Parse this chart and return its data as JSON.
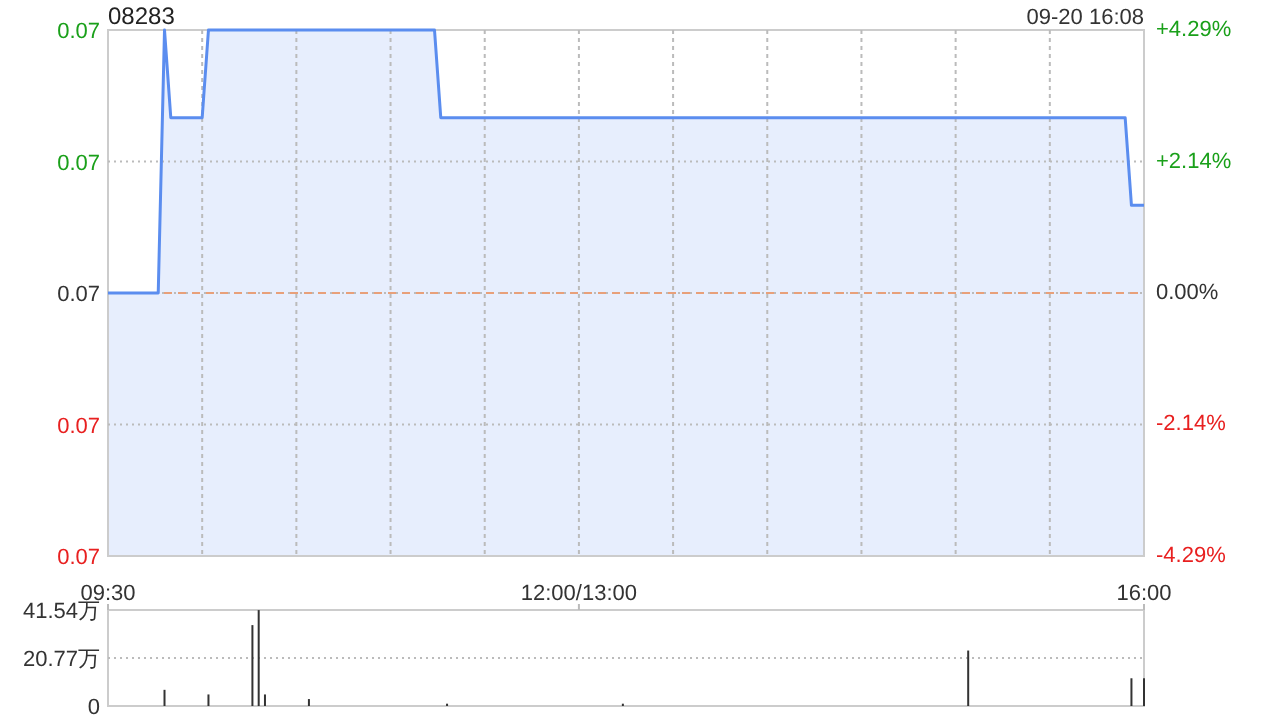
{
  "chart_data": [
    {
      "type": "line",
      "title": "08283",
      "annotations": [
        "09-20 16:08"
      ],
      "categories": [
        null,
        null,
        null,
        null,
        null,
        null,
        null,
        null,
        null,
        null,
        null,
        null,
        null,
        null,
        null,
        null,
        null,
        null,
        null,
        null,
        null,
        null,
        null,
        null,
        null,
        null,
        null,
        null,
        null,
        null,
        null,
        null,
        null,
        null,
        null,
        null,
        null,
        null,
        null,
        null,
        null,
        null,
        null,
        null,
        null,
        null,
        null,
        null,
        null,
        null,
        null,
        null,
        null,
        null,
        null,
        null,
        null,
        null,
        null,
        null,
        null,
        null,
        null,
        null,
        null,
        null,
        null,
        null,
        null,
        null,
        null,
        null,
        null,
        null,
        null,
        null,
        null,
        null,
        null,
        null,
        null,
        null,
        null,
        null,
        null,
        null,
        null,
        null,
        null,
        null,
        null,
        null,
        null,
        null,
        null,
        null,
        null,
        null,
        null,
        null,
        null,
        null,
        null,
        null,
        null,
        null,
        null,
        null,
        null,
        null,
        null,
        null,
        null,
        null,
        null,
        null,
        null,
        null,
        null,
        null,
        null,
        null,
        null,
        null,
        null,
        null,
        null,
        null,
        null,
        null,
        null,
        null,
        null,
        null,
        null,
        null,
        null,
        null,
        null,
        null,
        null,
        null,
        null,
        null,
        null,
        null,
        null,
        null,
        null,
        null,
        null,
        null,
        null,
        null,
        null,
        null,
        null,
        null,
        null,
        null,
        null,
        null,
        null,
        null,
        null,
        null
      ],
      "values": [
        0.07,
        0.07,
        0.07,
        0.07,
        0.07,
        0.07,
        0.07,
        0.07,
        0.07,
        0.073,
        0.072,
        0.072,
        0.072,
        0.072,
        0.072,
        0.072,
        0.073,
        0.073,
        0.073,
        0.073,
        0.073,
        0.073,
        0.073,
        0.073,
        0.073,
        0.073,
        0.073,
        0.073,
        0.073,
        0.073,
        0.073,
        0.073,
        0.073,
        0.073,
        0.073,
        0.073,
        0.073,
        0.073,
        0.073,
        0.073,
        0.073,
        0.073,
        0.073,
        0.073,
        0.073,
        0.073,
        0.073,
        0.073,
        0.073,
        0.073,
        0.073,
        0.073,
        0.073,
        0.072,
        0.072,
        0.072,
        0.072,
        0.072,
        0.072,
        0.072,
        0.072,
        0.072,
        0.072,
        0.072,
        0.072,
        0.072,
        0.072,
        0.072,
        0.072,
        0.072,
        0.072,
        0.072,
        0.072,
        0.072,
        0.072,
        0.072,
        0.072,
        0.072,
        0.072,
        0.072,
        0.072,
        0.072,
        0.072,
        0.072,
        0.072,
        0.072,
        0.072,
        0.072,
        0.072,
        0.072,
        0.072,
        0.072,
        0.072,
        0.072,
        0.072,
        0.072,
        0.072,
        0.072,
        0.072,
        0.072,
        0.072,
        0.072,
        0.072,
        0.072,
        0.072,
        0.072,
        0.072,
        0.072,
        0.072,
        0.072,
        0.072,
        0.072,
        0.072,
        0.072,
        0.072,
        0.072,
        0.072,
        0.072,
        0.072,
        0.072,
        0.072,
        0.072,
        0.072,
        0.072,
        0.072,
        0.072,
        0.072,
        0.072,
        0.072,
        0.072,
        0.072,
        0.072,
        0.072,
        0.072,
        0.072,
        0.072,
        0.072,
        0.072,
        0.072,
        0.072,
        0.072,
        0.072,
        0.072,
        0.072,
        0.072,
        0.072,
        0.072,
        0.072,
        0.072,
        0.072,
        0.072,
        0.072,
        0.072,
        0.072,
        0.072,
        0.072,
        0.072,
        0.072,
        0.072,
        0.072,
        0.072,
        0.072,
        0.072,
        0.071,
        0.071,
        0.071
      ],
      "color": "#5b8def",
      "ylim": [
        0.067,
        0.073
      ],
      "yticks": [
        {
          "value": 0.067,
          "label": "0.07"
        },
        {
          "value": 0.0685,
          "label": "0.07"
        },
        {
          "value": 0.07,
          "label": "0.07"
        },
        {
          "value": 0.0715,
          "label": "0.07"
        },
        {
          "value": 0.073,
          "label": "0.07"
        }
      ],
      "y2lim": [
        -4.29,
        4.29
      ],
      "y2ticks": [
        {
          "value": -4.29,
          "label": "-4.29%"
        },
        {
          "value": -2.14,
          "label": "-2.14%"
        },
        {
          "value": 0,
          "label": "0.00%"
        },
        {
          "value": 2.14,
          "label": "+2.14%"
        },
        {
          "value": 4.29,
          "label": "+4.29%"
        }
      ],
      "ref_lines": [
        {
          "axis": "y",
          "value": 0.07,
          "color": "#e8a07a",
          "line_style": "dashed"
        }
      ],
      "tick_labels": "y",
      "grid": true
    },
    {
      "type": "bar",
      "categories": [
        "09:30",
        null,
        null,
        null,
        null,
        null,
        null,
        null,
        null,
        null,
        null,
        null,
        null,
        null,
        null,
        null,
        null,
        null,
        null,
        null,
        null,
        null,
        null,
        null,
        null,
        null,
        null,
        null,
        null,
        null,
        null,
        null,
        null,
        null,
        null,
        null,
        null,
        null,
        null,
        null,
        null,
        null,
        null,
        null,
        null,
        null,
        null,
        null,
        null,
        null,
        null,
        null,
        null,
        null,
        null,
        null,
        null,
        null,
        null,
        null,
        null,
        null,
        null,
        null,
        null,
        null,
        null,
        null,
        null,
        null,
        null,
        null,
        null,
        null,
        null,
        "12:00/13:00",
        null,
        null,
        null,
        null,
        null,
        null,
        null,
        null,
        null,
        null,
        null,
        null,
        null,
        null,
        null,
        null,
        null,
        null,
        null,
        null,
        null,
        null,
        null,
        null,
        null,
        null,
        null,
        null,
        null,
        null,
        null,
        null,
        null,
        null,
        null,
        null,
        null,
        null,
        null,
        null,
        null,
        null,
        null,
        null,
        null,
        null,
        null,
        null,
        null,
        null,
        null,
        null,
        null,
        null,
        null,
        null,
        null,
        null,
        null,
        null,
        null,
        null,
        null,
        null,
        null,
        null,
        null,
        null,
        null,
        null,
        null,
        null,
        null,
        null,
        null,
        null,
        null,
        null,
        null,
        null,
        null,
        null,
        null,
        null,
        null,
        null,
        null,
        null,
        null,
        "16:00"
      ],
      "values": [
        0,
        0,
        0,
        0,
        0,
        0,
        0,
        0,
        0,
        7,
        0,
        0,
        0,
        0,
        0,
        0,
        5,
        0,
        0,
        0,
        0,
        0,
        0,
        35,
        41.5,
        5,
        0,
        0,
        0,
        0,
        0,
        0,
        3,
        0,
        0,
        0,
        0,
        0,
        0,
        0,
        0,
        0,
        0,
        0,
        0,
        0,
        0,
        0,
        0,
        0,
        0,
        0,
        0,
        0,
        1,
        0,
        0,
        0,
        0,
        0,
        0,
        0,
        0,
        0,
        0,
        0,
        0,
        0,
        0,
        0,
        0,
        0,
        0,
        0,
        0,
        0,
        0,
        0,
        0,
        0,
        0,
        0,
        1,
        0,
        0,
        0,
        0,
        0,
        0,
        0,
        0,
        0,
        0,
        0,
        0,
        0,
        0,
        0,
        0,
        0,
        0,
        0,
        0,
        0,
        0,
        0,
        0,
        0,
        0,
        0,
        0,
        0,
        0,
        0,
        0,
        0,
        0,
        0,
        0,
        0,
        0,
        0,
        0,
        0,
        0,
        0,
        0,
        0,
        0,
        0,
        0,
        0,
        0,
        0,
        0,
        0,
        0,
        24,
        0,
        0,
        0,
        0,
        0,
        0,
        0,
        0,
        0,
        0,
        0,
        0,
        0,
        0,
        0,
        0,
        0,
        0,
        0,
        0,
        0,
        0,
        0,
        0,
        0,
        12,
        0,
        12
      ],
      "color": "#333333",
      "ylim": [
        0,
        41.54
      ],
      "yticks": [
        0,
        {
          "value": 20.77,
          "label": "20.77万"
        },
        {
          "value": 41.54,
          "label": "41.54万"
        }
      ],
      "grid": "y"
    }
  ]
}
